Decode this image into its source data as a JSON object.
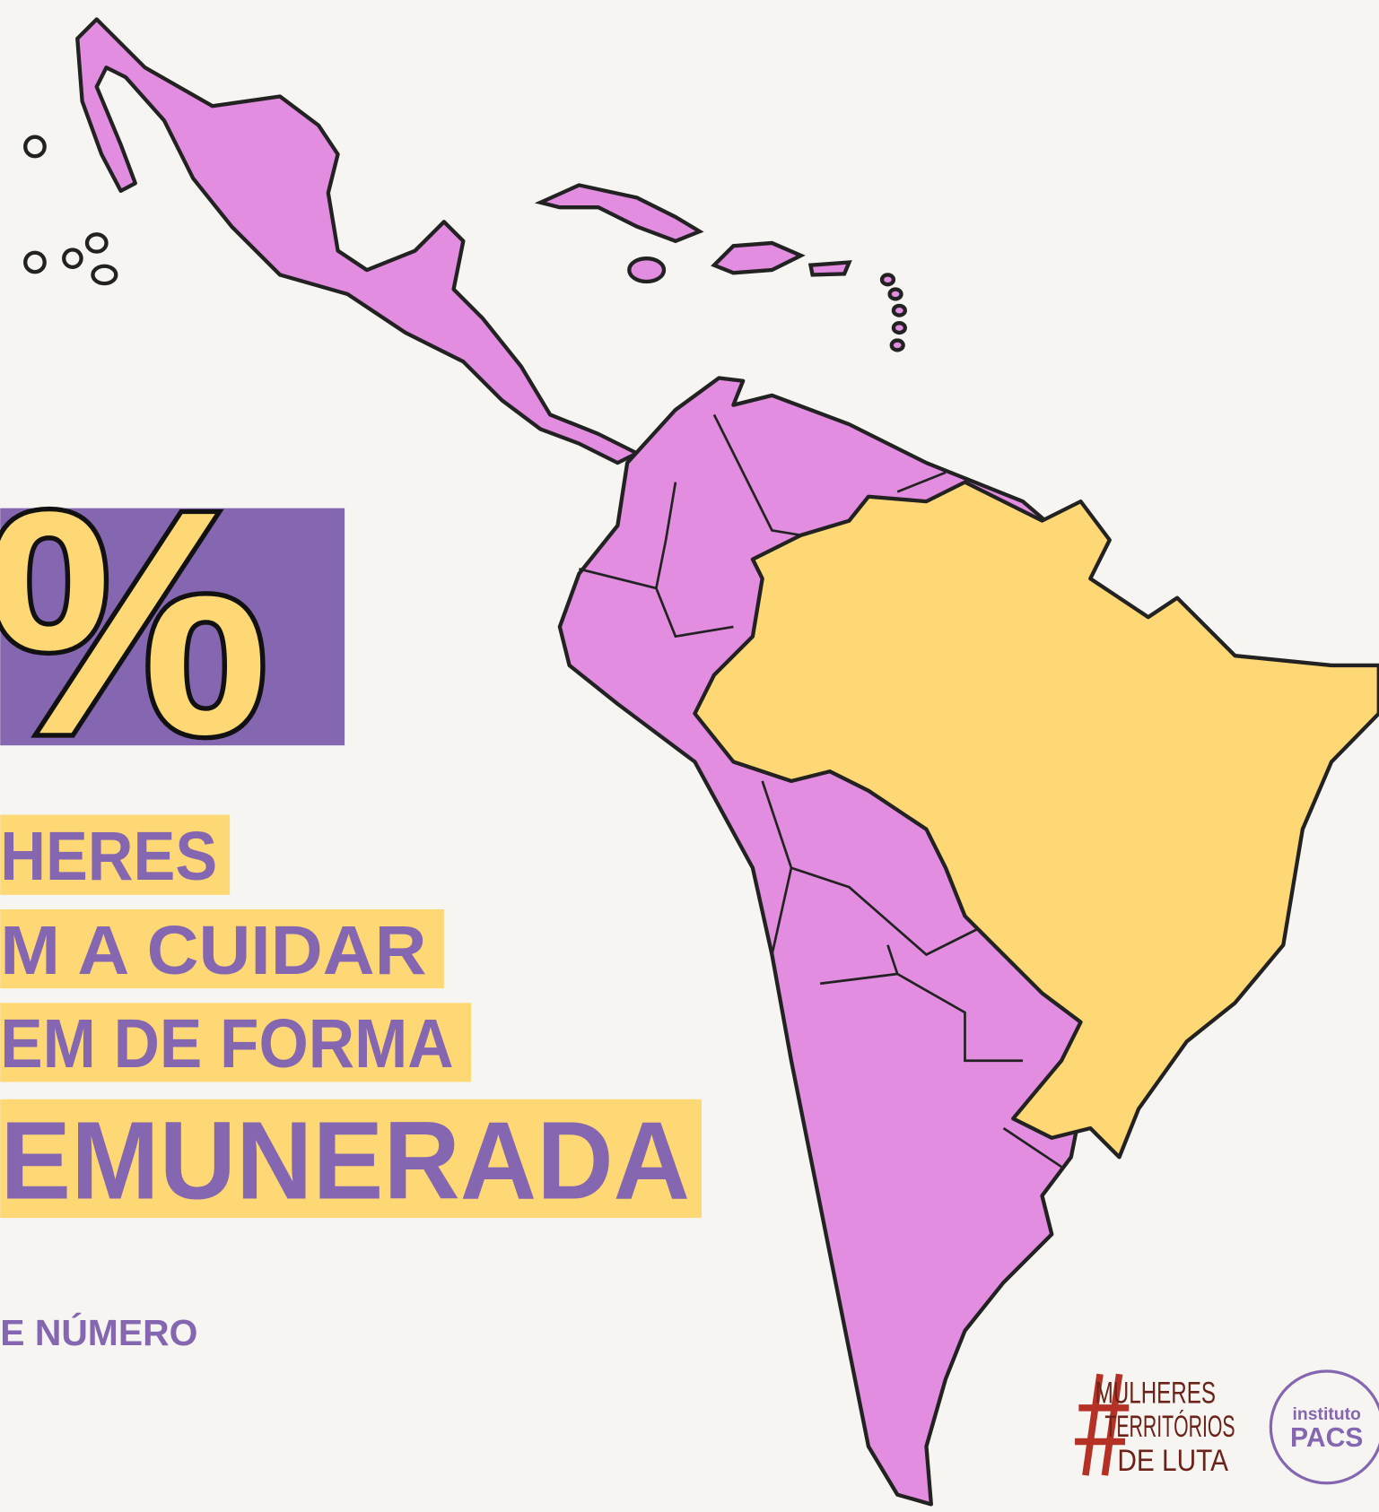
{
  "headline": {
    "percent": "%",
    "lines": [
      "HERES",
      "M A CUIDAR",
      "EM DE FORMA",
      "EMUNERADA"
    ]
  },
  "source": "E NÚMERO",
  "logos": {
    "mulheres": [
      "MULHERES",
      "TERRITÓRIOS",
      "DE LUTA"
    ],
    "pacs": [
      "instituto",
      "PACS"
    ]
  }
}
